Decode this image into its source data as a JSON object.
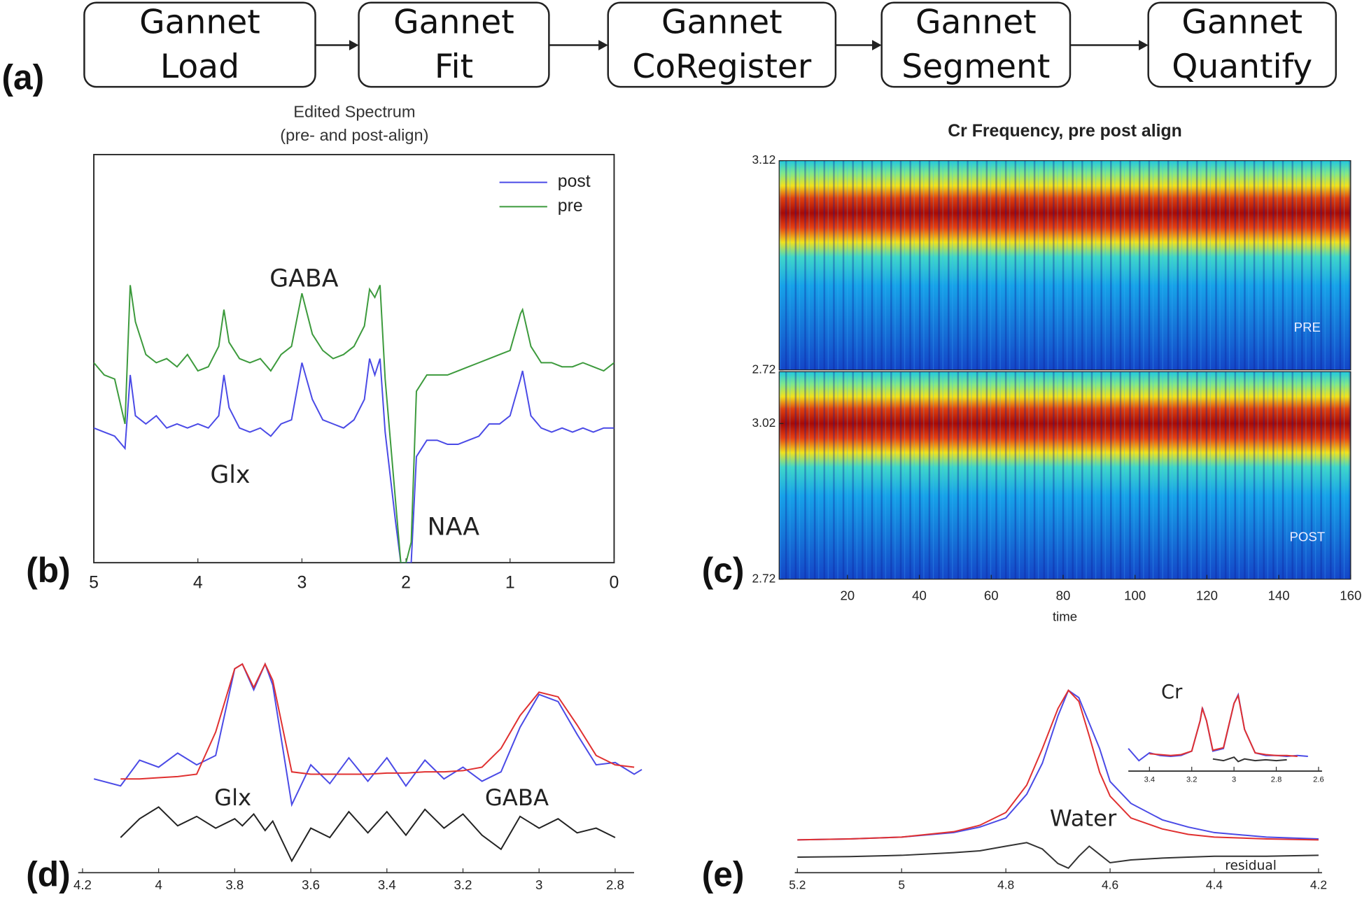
{
  "flow": {
    "label": "(a)",
    "steps": [
      [
        "Gannet",
        "Load"
      ],
      [
        "Gannet",
        "Fit"
      ],
      [
        "Gannet",
        "CoRegister"
      ],
      [
        "Gannet",
        "Segment"
      ],
      [
        "Gannet",
        "Quantify"
      ]
    ]
  },
  "chart_data": [
    {
      "type": "line",
      "panel": "(b)",
      "title": "Edited Spectrum",
      "subtitle": "(pre- and post-align)",
      "x": [
        5,
        4.9,
        4.8,
        4.7,
        4.65,
        4.6,
        4.5,
        4.4,
        4.3,
        4.2,
        4.1,
        4.0,
        3.9,
        3.8,
        3.75,
        3.7,
        3.6,
        3.5,
        3.4,
        3.3,
        3.2,
        3.1,
        3.0,
        2.9,
        2.8,
        2.7,
        2.6,
        2.5,
        2.4,
        2.35,
        2.3,
        2.25,
        2.2,
        2.1,
        2.05,
        2.0,
        1.95,
        1.9,
        1.8,
        1.7,
        1.6,
        1.5,
        1.4,
        1.3,
        1.2,
        1.1,
        1.0,
        0.9,
        0.88,
        0.8,
        0.7,
        0.6,
        0.5,
        0.4,
        0.3,
        0.2,
        0.1,
        0
      ],
      "series": [
        {
          "name": "post",
          "color": "#4a4ae6",
          "values": [
            3.3,
            3.2,
            3.1,
            2.8,
            4.6,
            3.6,
            3.4,
            3.6,
            3.3,
            3.4,
            3.3,
            3.4,
            3.3,
            3.6,
            4.6,
            3.8,
            3.3,
            3.2,
            3.3,
            3.1,
            3.4,
            3.5,
            4.9,
            4.0,
            3.5,
            3.4,
            3.3,
            3.5,
            4.0,
            5.0,
            4.6,
            5.0,
            3.2,
            1.0,
            0,
            0,
            0,
            2.6,
            3.0,
            3.0,
            2.9,
            2.9,
            3.0,
            3.1,
            3.4,
            3.4,
            3.6,
            4.5,
            4.7,
            3.6,
            3.3,
            3.2,
            3.3,
            3.2,
            3.3,
            3.2,
            3.3,
            3.3
          ]
        },
        {
          "name": "pre",
          "color": "#3c9a3c",
          "values": [
            4.9,
            4.6,
            4.5,
            3.4,
            6.8,
            5.9,
            5.1,
            4.9,
            5.0,
            4.8,
            5.1,
            4.7,
            4.8,
            5.3,
            6.2,
            5.4,
            5.0,
            4.9,
            5.0,
            4.7,
            5.1,
            5.3,
            6.6,
            5.6,
            5.2,
            5.0,
            5.1,
            5.3,
            5.8,
            6.7,
            6.5,
            6.8,
            4.5,
            1.5,
            0,
            0,
            0.5,
            4.2,
            4.6,
            4.6,
            4.6,
            4.7,
            4.8,
            4.9,
            5.0,
            5.1,
            5.2,
            6.1,
            6.2,
            5.3,
            4.9,
            4.9,
            4.8,
            4.8,
            4.9,
            4.8,
            4.7,
            4.9
          ]
        }
      ],
      "annotations": [
        "GABA",
        "Glx",
        "NAA"
      ],
      "xlim": [
        5,
        0
      ],
      "xticks": [
        5,
        4,
        3,
        2,
        1,
        0
      ],
      "ylim": [
        0,
        10
      ],
      "legend": "upper right"
    },
    {
      "type": "heatmap",
      "panel": "(c)",
      "title": "Cr Frequency, pre post align",
      "xlabel": "time",
      "xlim": [
        1,
        160
      ],
      "xticks": [
        20,
        40,
        60,
        80,
        100,
        120,
        140,
        160
      ],
      "panels": [
        {
          "label": "PRE",
          "ylim": [
            2.72,
            3.12
          ],
          "yticks": [
            3.12,
            2.72
          ]
        },
        {
          "label": "POST",
          "ylim": [
            2.72,
            3.12
          ],
          "yticks": [
            3.02,
            2.72
          ]
        }
      ]
    },
    {
      "type": "line",
      "panel": "(d)",
      "x": [
        4.17,
        4.1,
        4.05,
        4.0,
        3.95,
        3.9,
        3.85,
        3.8,
        3.78,
        3.75,
        3.72,
        3.7,
        3.65,
        3.6,
        3.55,
        3.5,
        3.45,
        3.4,
        3.35,
        3.3,
        3.25,
        3.2,
        3.15,
        3.1,
        3.05,
        3.0,
        2.95,
        2.9,
        2.85,
        2.8,
        2.75,
        2.73
      ],
      "series": [
        {
          "color": "#4a4ae6",
          "values": [
            4.0,
            3.7,
            4.8,
            4.5,
            5.1,
            4.6,
            5.0,
            8.7,
            8.9,
            7.8,
            8.9,
            8.0,
            2.9,
            4.6,
            3.8,
            4.9,
            3.9,
            4.9,
            3.7,
            4.8,
            4.0,
            4.5,
            3.9,
            4.3,
            6.2,
            7.6,
            7.3,
            5.9,
            4.6,
            4.7,
            4.2,
            4.4
          ]
        },
        {
          "color": "#e03030",
          "values": [
            null,
            4.0,
            4.0,
            4.05,
            4.1,
            4.2,
            6.0,
            8.7,
            8.9,
            7.9,
            8.9,
            8.2,
            4.3,
            4.2,
            4.2,
            4.2,
            4.2,
            4.25,
            4.25,
            4.3,
            4.3,
            4.35,
            4.5,
            5.3,
            6.7,
            7.7,
            7.5,
            6.3,
            5.0,
            4.6,
            4.5,
            null
          ]
        },
        {
          "color": "#222222",
          "values": [
            null,
            1.5,
            2.3,
            2.8,
            2.0,
            2.4,
            1.9,
            2.3,
            2.0,
            2.5,
            1.8,
            2.2,
            0.5,
            1.9,
            1.5,
            2.6,
            1.7,
            2.6,
            1.6,
            2.7,
            1.9,
            2.5,
            1.6,
            1.0,
            2.4,
            1.9,
            2.3,
            1.7,
            1.9,
            1.5,
            null,
            null
          ]
        }
      ],
      "annotations": [
        "Glx",
        "GABA"
      ],
      "xlim": [
        4.2,
        2.7
      ],
      "xticks": [
        4.2,
        4,
        3.8,
        3.6,
        3.4,
        3.2,
        3,
        2.8
      ],
      "ylim": [
        0,
        10
      ]
    },
    {
      "type": "line",
      "panel": "(e)",
      "x": [
        5.2,
        5.1,
        5.0,
        4.9,
        4.85,
        4.8,
        4.76,
        4.73,
        4.7,
        4.68,
        4.66,
        4.64,
        4.62,
        4.6,
        4.56,
        4.5,
        4.45,
        4.4,
        4.3,
        4.2
      ],
      "series": [
        {
          "color": "#4a4ae6",
          "values": [
            1.8,
            1.85,
            1.95,
            2.2,
            2.5,
            3.0,
            4.3,
            6.0,
            8.6,
            10,
            9.6,
            8.2,
            6.8,
            5.0,
            3.8,
            2.9,
            2.5,
            2.2,
            1.95,
            1.85
          ]
        },
        {
          "color": "#e03030",
          "values": [
            1.8,
            1.85,
            1.95,
            2.25,
            2.6,
            3.3,
            4.8,
            6.8,
            9.0,
            10,
            9.4,
            7.5,
            5.5,
            4.2,
            3.0,
            2.4,
            2.1,
            1.95,
            1.85,
            1.8
          ]
        },
        {
          "color": "#333333",
          "values": [
            0.85,
            0.88,
            0.95,
            1.1,
            1.2,
            1.45,
            1.65,
            1.3,
            0.5,
            0.25,
            0.9,
            1.45,
            1.0,
            0.55,
            0.7,
            0.8,
            0.85,
            0.9,
            0.9,
            0.95
          ]
        }
      ],
      "annotations": [
        "Water",
        "residual"
      ],
      "xlim": [
        5.2,
        4.2
      ],
      "xticks": [
        5.2,
        5,
        4.8,
        4.6,
        4.4,
        4.2
      ],
      "ylim": [
        0,
        10
      ]
    },
    {
      "type": "line",
      "x": [
        3.5,
        3.45,
        3.4,
        3.35,
        3.3,
        3.25,
        3.2,
        3.16,
        3.15,
        3.13,
        3.1,
        3.05,
        3.0,
        2.98,
        2.95,
        2.9,
        2.85,
        2.8,
        2.75,
        2.7,
        2.65
      ],
      "series": [
        {
          "color": "#4a4ae6",
          "values": [
            1.8,
            0.4,
            1.3,
            1.0,
            0.9,
            1.0,
            1.5,
            5.0,
            6.5,
            5.0,
            1.5,
            1.8,
            7.0,
            8.0,
            4.0,
            1.3,
            1.0,
            1.0,
            0.9,
            1.0,
            0.9
          ]
        },
        {
          "color": "#e03030",
          "values": [
            null,
            null,
            1.2,
            1.1,
            1.0,
            1.1,
            1.5,
            5.0,
            6.4,
            5.0,
            1.6,
            1.9,
            7.0,
            7.9,
            4.0,
            1.3,
            1.1,
            1.0,
            1.0,
            0.9,
            null
          ]
        },
        {
          "color": "#333333",
          "values": [
            null,
            null,
            null,
            null,
            null,
            null,
            null,
            null,
            null,
            null,
            0.6,
            0.4,
            0.8,
            0.3,
            0.6,
            0.4,
            0.5,
            0.4,
            0.5,
            null,
            null
          ]
        }
      ],
      "annotations": [
        "Cr"
      ],
      "xlim": [
        3.5,
        2.6
      ],
      "xticks": [
        3.4,
        3.2,
        3,
        2.8,
        2.6
      ],
      "ylim": [
        0,
        10
      ]
    }
  ]
}
